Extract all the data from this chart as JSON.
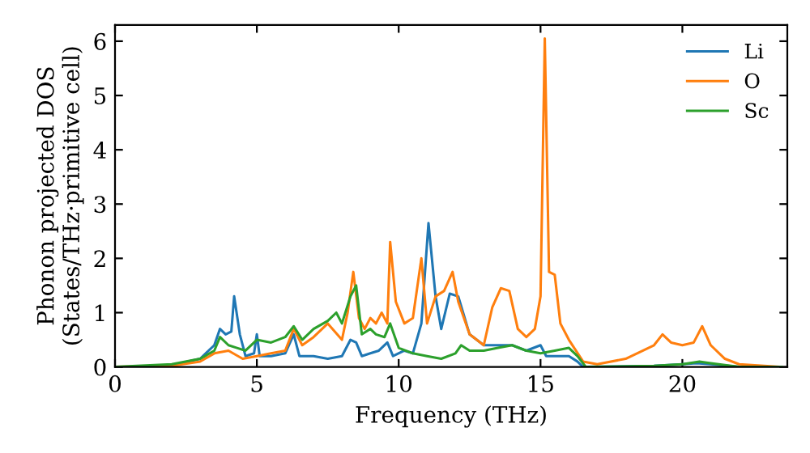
{
  "chart_data": {
    "type": "line",
    "xlabel": "Frequency (THz)",
    "ylabel": "Phonon projected DOS\n(States/THz·primitive cell)",
    "xlim": [
      0,
      23.7
    ],
    "ylim": [
      0,
      6.3
    ],
    "xticks": [
      0,
      5,
      10,
      15,
      20
    ],
    "yticks": [
      0,
      1,
      2,
      3,
      4,
      5,
      6
    ],
    "grid": false,
    "legend": "top right",
    "series": [
      {
        "name": "Li",
        "color": "#1f77b4",
        "x": [
          2,
          3,
          3.5,
          3.7,
          3.9,
          4.1,
          4.2,
          4.4,
          4.6,
          4.9,
          5.0,
          5.1,
          5.5,
          6,
          6.3,
          6.5,
          7,
          7.5,
          8,
          8.3,
          8.5,
          8.7,
          9,
          9.3,
          9.6,
          9.8,
          10.2,
          10.5,
          10.8,
          11.05,
          11.3,
          11.5,
          11.8,
          12.1,
          12.5,
          13,
          14,
          14.5,
          15,
          15.2,
          16,
          16.3,
          16.5,
          19,
          20,
          20.5,
          21,
          22,
          23.5
        ],
        "values": [
          0.03,
          0.15,
          0.4,
          0.7,
          0.6,
          0.65,
          1.3,
          0.6,
          0.2,
          0.25,
          0.6,
          0.2,
          0.2,
          0.25,
          0.6,
          0.2,
          0.2,
          0.15,
          0.2,
          0.5,
          0.45,
          0.2,
          0.25,
          0.3,
          0.45,
          0.2,
          0.3,
          0.25,
          0.8,
          2.65,
          1.3,
          0.7,
          1.35,
          1.3,
          0.6,
          0.4,
          0.4,
          0.3,
          0.4,
          0.2,
          0.2,
          0.1,
          0,
          0.02,
          0.05,
          0.07,
          0.05,
          0,
          0
        ]
      },
      {
        "name": "O",
        "color": "#ff7f0e",
        "x": [
          0,
          2,
          3,
          3.5,
          4,
          4.5,
          5,
          5.5,
          6,
          6.3,
          6.6,
          7,
          7.5,
          8,
          8.2,
          8.4,
          8.6,
          8.8,
          9,
          9.2,
          9.4,
          9.6,
          9.7,
          9.9,
          10.2,
          10.5,
          10.8,
          11.0,
          11.3,
          11.6,
          11.9,
          12.1,
          12.5,
          13,
          13.3,
          13.6,
          13.9,
          14.2,
          14.5,
          14.8,
          15.0,
          15.15,
          15.3,
          15.5,
          15.7,
          16,
          16.5,
          17,
          18,
          19,
          19.3,
          19.6,
          20,
          20.4,
          20.7,
          21,
          21.5,
          22,
          23.5
        ],
        "values": [
          0,
          0.02,
          0.1,
          0.25,
          0.3,
          0.15,
          0.2,
          0.25,
          0.3,
          0.7,
          0.4,
          0.55,
          0.8,
          0.5,
          1.0,
          1.75,
          0.9,
          0.7,
          0.9,
          0.8,
          1.0,
          0.8,
          2.3,
          1.2,
          0.8,
          0.9,
          2.0,
          0.8,
          1.3,
          1.4,
          1.75,
          1.2,
          0.6,
          0.4,
          1.1,
          1.45,
          1.4,
          0.7,
          0.55,
          0.7,
          1.3,
          6.05,
          1.75,
          1.7,
          0.8,
          0.5,
          0.1,
          0.05,
          0.15,
          0.4,
          0.6,
          0.45,
          0.4,
          0.45,
          0.75,
          0.4,
          0.15,
          0.05,
          0
        ]
      },
      {
        "name": "Sc",
        "color": "#2ca02c",
        "x": [
          0,
          2,
          3,
          3.5,
          3.7,
          4,
          4.3,
          4.6,
          5,
          5.5,
          6,
          6.3,
          6.6,
          7,
          7.5,
          7.8,
          8,
          8.3,
          8.5,
          8.7,
          9,
          9.2,
          9.5,
          9.7,
          10,
          10.5,
          11,
          11.5,
          12,
          12.2,
          12.5,
          13,
          13.5,
          14,
          14.5,
          15,
          15.5,
          16,
          16.3,
          16.6,
          19,
          20,
          20.6,
          21,
          22,
          23.5
        ],
        "values": [
          0,
          0.05,
          0.15,
          0.3,
          0.55,
          0.4,
          0.35,
          0.3,
          0.5,
          0.45,
          0.55,
          0.75,
          0.5,
          0.7,
          0.85,
          1.0,
          0.8,
          1.3,
          1.5,
          0.6,
          0.7,
          0.6,
          0.55,
          0.8,
          0.35,
          0.25,
          0.2,
          0.15,
          0.25,
          0.4,
          0.3,
          0.3,
          0.35,
          0.4,
          0.3,
          0.25,
          0.3,
          0.35,
          0.2,
          0,
          0.02,
          0.05,
          0.1,
          0.07,
          0,
          0
        ]
      }
    ]
  }
}
